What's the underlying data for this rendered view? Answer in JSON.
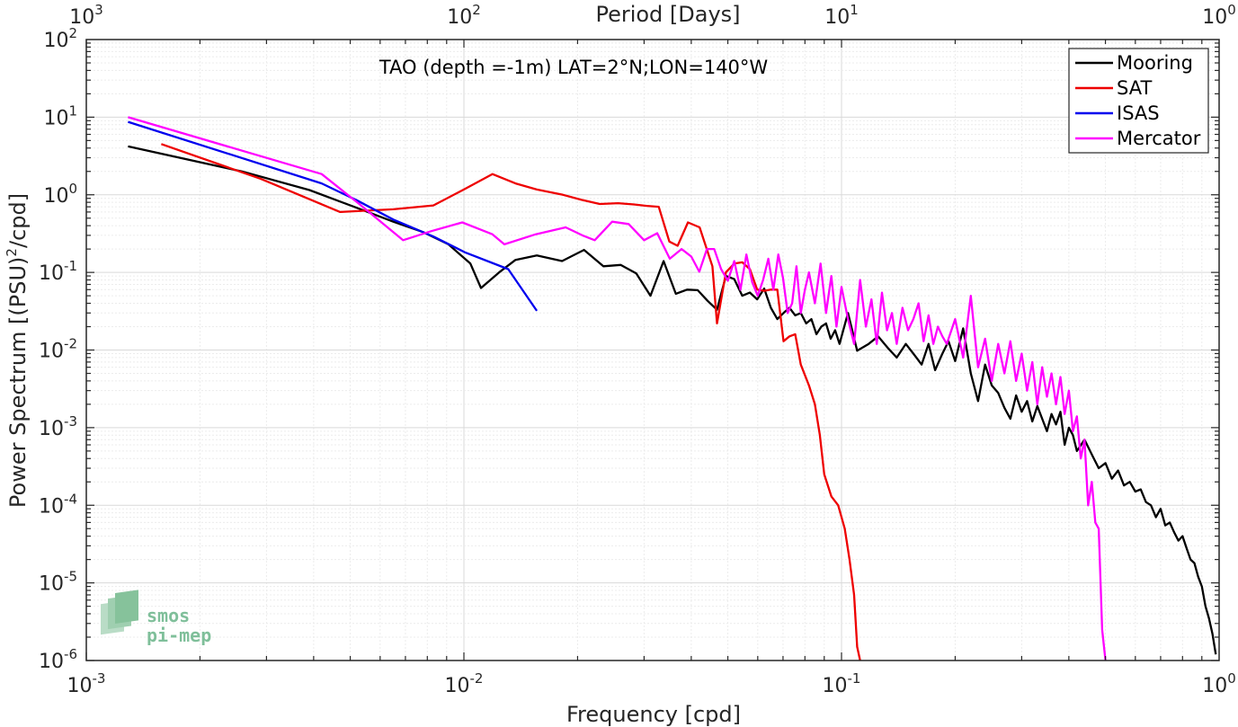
{
  "chart_data": {
    "type": "line",
    "title": "TAO (depth =-1m) LAT=2°N;LON=140°W",
    "xlabel": "Frequency [cpd]",
    "ylabel": "Power Spectrum [(PSU)",
    "ylabel_sup": "2",
    "ylabel_tail": "/cpd]",
    "x2label": "Period [Days]",
    "x_scale": "log",
    "y_scale": "log",
    "xlim": [
      0.001,
      1
    ],
    "ylim": [
      1e-06,
      100
    ],
    "grid": true,
    "legend_position": "top-right",
    "x_ticks": [
      {
        "value": 0.001,
        "base": "10",
        "exp": "-3"
      },
      {
        "value": 0.01,
        "base": "10",
        "exp": "-2"
      },
      {
        "value": 0.1,
        "base": "10",
        "exp": "-1"
      },
      {
        "value": 1,
        "base": "10",
        "exp": "0"
      }
    ],
    "x2_ticks": [
      {
        "value": 0.001,
        "base": "10",
        "exp": "3"
      },
      {
        "value": 0.01,
        "base": "10",
        "exp": "2"
      },
      {
        "value": 0.1,
        "base": "10",
        "exp": "1"
      },
      {
        "value": 1,
        "base": "10",
        "exp": "0"
      }
    ],
    "y_ticks": [
      {
        "value": 100,
        "base": "10",
        "exp": "2"
      },
      {
        "value": 10,
        "base": "10",
        "exp": "1"
      },
      {
        "value": 1,
        "base": "10",
        "exp": "0"
      },
      {
        "value": 0.1,
        "base": "10",
        "exp": "-1"
      },
      {
        "value": 0.01,
        "base": "10",
        "exp": "-2"
      },
      {
        "value": 0.001,
        "base": "10",
        "exp": "-3"
      },
      {
        "value": 0.0001,
        "base": "10",
        "exp": "-4"
      },
      {
        "value": 1e-05,
        "base": "10",
        "exp": "-5"
      },
      {
        "value": 1e-06,
        "base": "10",
        "exp": "-6"
      }
    ],
    "series": [
      {
        "name": "Mooring",
        "color": "#000000",
        "points": [
          [
            0.00129,
            4.2
          ],
          [
            0.00258,
            2.0
          ],
          [
            0.0039,
            1.15
          ],
          [
            0.0052,
            0.68
          ],
          [
            0.0065,
            0.45
          ],
          [
            0.0078,
            0.33
          ],
          [
            0.0091,
            0.23
          ],
          [
            0.0104,
            0.13
          ],
          [
            0.0111,
            0.063
          ],
          [
            0.0124,
            0.1
          ],
          [
            0.0137,
            0.145
          ],
          [
            0.0156,
            0.165
          ],
          [
            0.0182,
            0.14
          ],
          [
            0.0208,
            0.195
          ],
          [
            0.0234,
            0.12
          ],
          [
            0.026,
            0.125
          ],
          [
            0.0286,
            0.097
          ],
          [
            0.0312,
            0.05
          ],
          [
            0.0338,
            0.14
          ],
          [
            0.0364,
            0.053
          ],
          [
            0.039,
            0.06
          ],
          [
            0.0416,
            0.059
          ],
          [
            0.0442,
            0.043
          ],
          [
            0.0468,
            0.033
          ],
          [
            0.0494,
            0.09
          ],
          [
            0.052,
            0.082
          ],
          [
            0.0546,
            0.05
          ],
          [
            0.0572,
            0.055
          ],
          [
            0.0598,
            0.045
          ],
          [
            0.0624,
            0.062
          ],
          [
            0.065,
            0.035
          ],
          [
            0.0676,
            0.025
          ],
          [
            0.0702,
            0.03
          ],
          [
            0.0728,
            0.035
          ],
          [
            0.0754,
            0.028
          ],
          [
            0.078,
            0.03
          ],
          [
            0.0806,
            0.022
          ],
          [
            0.0832,
            0.025
          ],
          [
            0.0858,
            0.016
          ],
          [
            0.0884,
            0.02
          ],
          [
            0.091,
            0.022
          ],
          [
            0.0936,
            0.014
          ],
          [
            0.0962,
            0.018
          ],
          [
            0.0988,
            0.012
          ],
          [
            0.104,
            0.03
          ],
          [
            0.11,
            0.0098
          ],
          [
            0.118,
            0.012
          ],
          [
            0.125,
            0.015
          ],
          [
            0.133,
            0.0105
          ],
          [
            0.14,
            0.008
          ],
          [
            0.148,
            0.012
          ],
          [
            0.155,
            0.009
          ],
          [
            0.163,
            0.0065
          ],
          [
            0.17,
            0.012
          ],
          [
            0.177,
            0.0055
          ],
          [
            0.185,
            0.009
          ],
          [
            0.192,
            0.013
          ],
          [
            0.2,
            0.0072
          ],
          [
            0.21,
            0.019
          ],
          [
            0.22,
            0.005
          ],
          [
            0.23,
            0.0022
          ],
          [
            0.24,
            0.0065
          ],
          [
            0.25,
            0.0035
          ],
          [
            0.26,
            0.0028
          ],
          [
            0.27,
            0.0018
          ],
          [
            0.28,
            0.0013
          ],
          [
            0.29,
            0.0026
          ],
          [
            0.3,
            0.0016
          ],
          [
            0.31,
            0.0022
          ],
          [
            0.32,
            0.0012
          ],
          [
            0.33,
            0.0019
          ],
          [
            0.34,
            0.0013
          ],
          [
            0.35,
            0.0009
          ],
          [
            0.36,
            0.0015
          ],
          [
            0.37,
            0.0011
          ],
          [
            0.38,
            0.0016
          ],
          [
            0.39,
            0.0006
          ],
          [
            0.4,
            0.001
          ],
          [
            0.41,
            0.0008
          ],
          [
            0.42,
            0.0005
          ],
          [
            0.44,
            0.0007
          ],
          [
            0.46,
            0.00045
          ],
          [
            0.48,
            0.0003
          ],
          [
            0.5,
            0.00035
          ],
          [
            0.52,
            0.00022
          ],
          [
            0.54,
            0.00028
          ],
          [
            0.56,
            0.00018
          ],
          [
            0.58,
            0.0002
          ],
          [
            0.6,
            0.00015
          ],
          [
            0.62,
            0.00016
          ],
          [
            0.64,
            0.00011
          ],
          [
            0.66,
            0.0001
          ],
          [
            0.68,
            7e-05
          ],
          [
            0.7,
            9e-05
          ],
          [
            0.72,
            5.5e-05
          ],
          [
            0.74,
            6e-05
          ],
          [
            0.76,
            4.5e-05
          ],
          [
            0.78,
            3.5e-05
          ],
          [
            0.8,
            4e-05
          ],
          [
            0.82,
            2.8e-05
          ],
          [
            0.84,
            2e-05
          ],
          [
            0.86,
            1.8e-05
          ],
          [
            0.88,
            1.2e-05
          ],
          [
            0.9,
            9e-06
          ],
          [
            0.92,
            5e-06
          ],
          [
            0.94,
            3.5e-06
          ],
          [
            0.96,
            2.2e-06
          ],
          [
            0.98,
            1.2e-06
          ]
        ]
      },
      {
        "name": "SAT",
        "color": "#ee0000",
        "points": [
          [
            0.00158,
            4.5
          ],
          [
            0.0029,
            1.6
          ],
          [
            0.0047,
            0.6
          ],
          [
            0.0065,
            0.65
          ],
          [
            0.0083,
            0.73
          ],
          [
            0.0101,
            1.2
          ],
          [
            0.0119,
            1.85
          ],
          [
            0.0137,
            1.4
          ],
          [
            0.0156,
            1.17
          ],
          [
            0.0183,
            1.0
          ],
          [
            0.0205,
            0.86
          ],
          [
            0.0229,
            0.76
          ],
          [
            0.0256,
            0.78
          ],
          [
            0.0282,
            0.75
          ],
          [
            0.0305,
            0.72
          ],
          [
            0.0328,
            0.7
          ],
          [
            0.035,
            0.25
          ],
          [
            0.0368,
            0.22
          ],
          [
            0.0392,
            0.44
          ],
          [
            0.0421,
            0.38
          ],
          [
            0.0455,
            0.12
          ],
          [
            0.0468,
            0.022
          ],
          [
            0.0494,
            0.1
          ],
          [
            0.052,
            0.13
          ],
          [
            0.0546,
            0.135
          ],
          [
            0.0572,
            0.11
          ],
          [
            0.0598,
            0.06
          ],
          [
            0.0624,
            0.058
          ],
          [
            0.065,
            0.06
          ],
          [
            0.0676,
            0.06
          ],
          [
            0.0702,
            0.013
          ],
          [
            0.0728,
            0.015
          ],
          [
            0.0754,
            0.016
          ],
          [
            0.078,
            0.0065
          ],
          [
            0.082,
            0.0035
          ],
          [
            0.085,
            0.002
          ],
          [
            0.0876,
            0.0008
          ],
          [
            0.09,
            0.00025
          ],
          [
            0.094,
            0.00013
          ],
          [
            0.098,
            0.0001
          ],
          [
            0.102,
            5e-05
          ],
          [
            0.105,
            2e-05
          ],
          [
            0.108,
            7e-06
          ],
          [
            0.11,
            1.5e-06
          ],
          [
            0.112,
            8e-07
          ]
        ]
      },
      {
        "name": "ISAS",
        "color": "#0000ee",
        "points": [
          [
            0.00129,
            8.7
          ],
          [
            0.0042,
            1.4
          ],
          [
            0.0052,
            0.85
          ],
          [
            0.0065,
            0.48
          ],
          [
            0.0083,
            0.29
          ],
          [
            0.0101,
            0.18
          ],
          [
            0.0131,
            0.11
          ],
          [
            0.0156,
            0.032
          ]
        ]
      },
      {
        "name": "Mercator",
        "color": "#ff00ff",
        "points": [
          [
            0.00129,
            10.0
          ],
          [
            0.0042,
            1.85
          ],
          [
            0.0053,
            0.75
          ],
          [
            0.0069,
            0.26
          ],
          [
            0.0082,
            0.34
          ],
          [
            0.0099,
            0.44
          ],
          [
            0.0119,
            0.31
          ],
          [
            0.0128,
            0.23
          ],
          [
            0.0155,
            0.31
          ],
          [
            0.0186,
            0.38
          ],
          [
            0.0206,
            0.3
          ],
          [
            0.0222,
            0.26
          ],
          [
            0.0247,
            0.45
          ],
          [
            0.0273,
            0.42
          ],
          [
            0.03,
            0.26
          ],
          [
            0.0325,
            0.32
          ],
          [
            0.0351,
            0.15
          ],
          [
            0.0377,
            0.2
          ],
          [
            0.04,
            0.16
          ],
          [
            0.042,
            0.102
          ],
          [
            0.044,
            0.2
          ],
          [
            0.046,
            0.2
          ],
          [
            0.048,
            0.11
          ],
          [
            0.05,
            0.078
          ],
          [
            0.052,
            0.14
          ],
          [
            0.054,
            0.06
          ],
          [
            0.056,
            0.17
          ],
          [
            0.058,
            0.075
          ],
          [
            0.06,
            0.05
          ],
          [
            0.062,
            0.08
          ],
          [
            0.064,
            0.15
          ],
          [
            0.066,
            0.06
          ],
          [
            0.068,
            0.17
          ],
          [
            0.07,
            0.085
          ],
          [
            0.072,
            0.03
          ],
          [
            0.074,
            0.04
          ],
          [
            0.076,
            0.12
          ],
          [
            0.078,
            0.03
          ],
          [
            0.08,
            0.06
          ],
          [
            0.082,
            0.1
          ],
          [
            0.085,
            0.04
          ],
          [
            0.088,
            0.13
          ],
          [
            0.091,
            0.03
          ],
          [
            0.094,
            0.09
          ],
          [
            0.097,
            0.02
          ],
          [
            0.1,
            0.065
          ],
          [
            0.104,
            0.025
          ],
          [
            0.108,
            0.012
          ],
          [
            0.112,
            0.08
          ],
          [
            0.116,
            0.02
          ],
          [
            0.12,
            0.045
          ],
          [
            0.124,
            0.012
          ],
          [
            0.128,
            0.055
          ],
          [
            0.132,
            0.018
          ],
          [
            0.136,
            0.03
          ],
          [
            0.14,
            0.012
          ],
          [
            0.145,
            0.035
          ],
          [
            0.15,
            0.018
          ],
          [
            0.155,
            0.025
          ],
          [
            0.16,
            0.04
          ],
          [
            0.165,
            0.013
          ],
          [
            0.17,
            0.028
          ],
          [
            0.175,
            0.012
          ],
          [
            0.18,
            0.02
          ],
          [
            0.185,
            0.015
          ],
          [
            0.19,
            0.012
          ],
          [
            0.2,
            0.025
          ],
          [
            0.21,
            0.008
          ],
          [
            0.22,
            0.05
          ],
          [
            0.23,
            0.006
          ],
          [
            0.24,
            0.014
          ],
          [
            0.25,
            0.004
          ],
          [
            0.26,
            0.012
          ],
          [
            0.27,
            0.005
          ],
          [
            0.28,
            0.013
          ],
          [
            0.29,
            0.004
          ],
          [
            0.3,
            0.009
          ],
          [
            0.31,
            0.003
          ],
          [
            0.32,
            0.007
          ],
          [
            0.33,
            0.002
          ],
          [
            0.34,
            0.006
          ],
          [
            0.35,
            0.0025
          ],
          [
            0.36,
            0.005
          ],
          [
            0.37,
            0.002
          ],
          [
            0.38,
            0.0045
          ],
          [
            0.39,
            0.0015
          ],
          [
            0.4,
            0.003
          ],
          [
            0.41,
            0.0009
          ],
          [
            0.42,
            0.0014
          ],
          [
            0.43,
            0.0004
          ],
          [
            0.44,
            0.0007
          ],
          [
            0.45,
            0.0001
          ],
          [
            0.46,
            0.0002
          ],
          [
            0.47,
            6e-05
          ],
          [
            0.48,
            5e-05
          ],
          [
            0.49,
            2.5e-06
          ],
          [
            0.5,
            9e-07
          ]
        ]
      }
    ],
    "logo_text": [
      "smos",
      "pi-mep"
    ]
  }
}
